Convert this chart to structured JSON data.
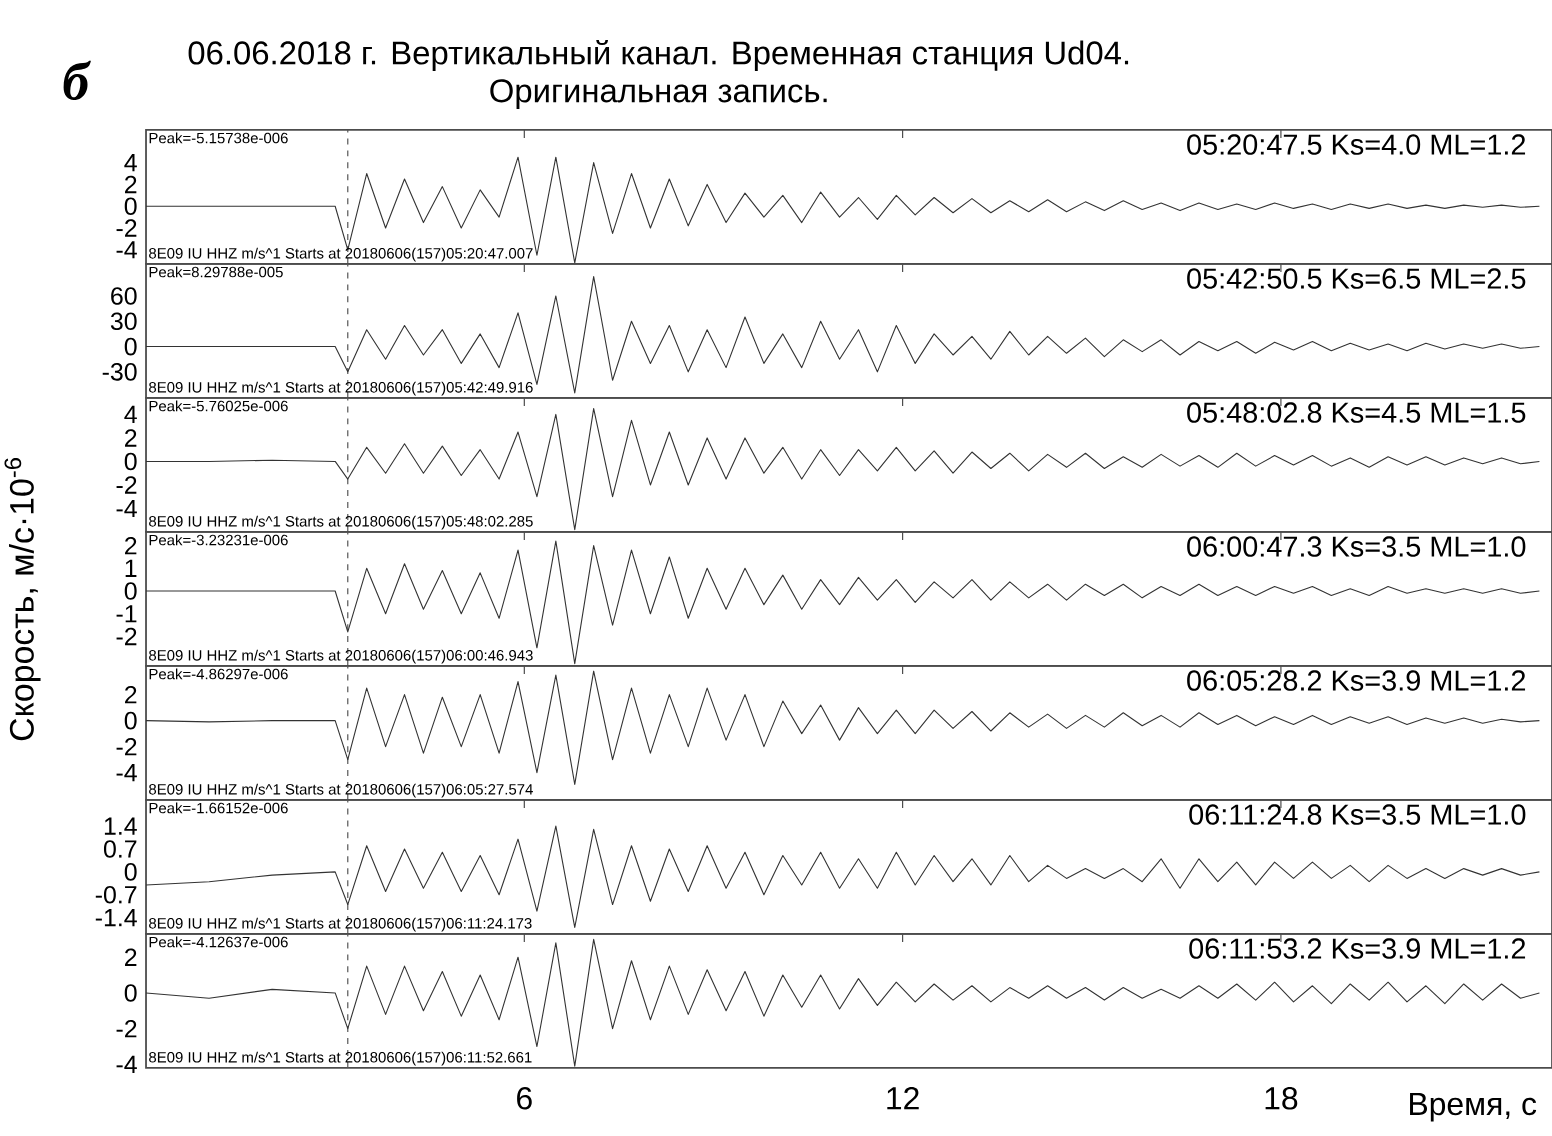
{
  "chart_data": [
    {
      "type": "line",
      "title": "06.06.2018 г. Вертикальный канал. Временная станция Ud04.",
      "subtitle": "Оригинальная запись.",
      "x": [
        0,
        1,
        2,
        3,
        3.2,
        3.5,
        3.8,
        4.1,
        4.4,
        4.7,
        5,
        5.3,
        5.6,
        5.9,
        6.2,
        6.5,
        6.8,
        7.1,
        7.4,
        7.7,
        8,
        8.3,
        8.6,
        8.9,
        9.2,
        9.5,
        9.8,
        10.1,
        10.4,
        10.7,
        11,
        11.3,
        11.6,
        11.9,
        12.2,
        12.5,
        12.8,
        13.1,
        13.4,
        13.7,
        14,
        14.3,
        14.6,
        14.9,
        15.2,
        15.5,
        15.8,
        16.1,
        16.4,
        16.7,
        17,
        17.3,
        17.6,
        17.9,
        18.2,
        18.5,
        18.8,
        19.1,
        19.4,
        19.7,
        20,
        20.3,
        20.6,
        20.9,
        21.2,
        21.5,
        21.8,
        22.1
      ],
      "series": [
        {
          "color": "#333333",
          "values": [
            0,
            0,
            0,
            0,
            -4,
            3,
            -2,
            2.5,
            -1.5,
            1.8,
            -2,
            1.5,
            -1,
            4.5,
            -4.5,
            4.5,
            -5.2,
            4,
            -2.5,
            3,
            -2,
            2.5,
            -1.8,
            2,
            -1.5,
            1.2,
            -1,
            1,
            -1.5,
            1.3,
            -1,
            0.8,
            -1.2,
            1,
            -0.8,
            0.8,
            -0.6,
            0.7,
            -0.6,
            0.5,
            -0.5,
            0.6,
            -0.5,
            0.4,
            -0.4,
            0.5,
            -0.3,
            0.3,
            -0.4,
            0.3,
            -0.3,
            0.2,
            -0.3,
            0.3,
            -0.2,
            0.2,
            -0.3,
            0.2,
            -0.2,
            0.2,
            -0.2,
            0.1,
            -0.2,
            0.1,
            -0.1,
            0.1,
            -0.1,
            0
          ]
        }
      ],
      "xlim": [
        0,
        22.3
      ],
      "xticks": [
        6,
        12,
        18
      ],
      "ylim": [
        -5.3,
        7
      ],
      "yticks": [
        4,
        2,
        0,
        -2,
        -4
      ],
      "tick_labels": "y",
      "ref_lines": [
        {
          "axis": "x",
          "value": 3.2,
          "line_style": "dashed",
          "color": "#555555"
        }
      ],
      "annotations": [
        "Peak=-5.15738e-006",
        "8E09 IU HHZ  m/s^1 Starts at 20180606(157)05:20:47.007",
        "05:20:47.5  Ks=4.0  ML=1.2",
        "б"
      ]
    },
    {
      "type": "line",
      "x": [
        0,
        1,
        2,
        3,
        3.2,
        3.5,
        3.8,
        4.1,
        4.4,
        4.7,
        5,
        5.3,
        5.6,
        5.9,
        6.2,
        6.5,
        6.8,
        7.1,
        7.4,
        7.7,
        8,
        8.3,
        8.6,
        8.9,
        9.2,
        9.5,
        9.8,
        10.1,
        10.4,
        10.7,
        11,
        11.3,
        11.6,
        11.9,
        12.2,
        12.5,
        12.8,
        13.1,
        13.4,
        13.7,
        14,
        14.3,
        14.6,
        14.9,
        15.2,
        15.5,
        15.8,
        16.1,
        16.4,
        16.7,
        17,
        17.3,
        17.6,
        17.9,
        18.2,
        18.5,
        18.8,
        19.1,
        19.4,
        19.7,
        20,
        20.3,
        20.6,
        20.9,
        21.2,
        21.5,
        21.8,
        22.1
      ],
      "series": [
        {
          "color": "#333333",
          "values": [
            0,
            0,
            0,
            0,
            -30,
            20,
            -15,
            25,
            -10,
            20,
            -20,
            15,
            -25,
            40,
            -45,
            60,
            -55,
            83,
            -40,
            30,
            -20,
            25,
            -30,
            20,
            -25,
            35,
            -20,
            15,
            -25,
            30,
            -15,
            20,
            -30,
            25,
            -20,
            15,
            -10,
            12,
            -15,
            18,
            -10,
            12,
            -8,
            10,
            -12,
            8,
            -6,
            8,
            -10,
            6,
            -5,
            6,
            -8,
            5,
            -4,
            6,
            -5,
            4,
            -4,
            3,
            -5,
            4,
            -3,
            3,
            -2,
            3,
            -2,
            0
          ]
        }
      ],
      "xlim": [
        0,
        22.3
      ],
      "xticks": [
        6,
        12,
        18
      ],
      "ylim": [
        -61,
        98
      ],
      "yticks": [
        60,
        30,
        0,
        -30
      ],
      "tick_labels": "y",
      "ref_lines": [
        {
          "axis": "x",
          "value": 3.2,
          "line_style": "dashed",
          "color": "#555555"
        }
      ],
      "annotations": [
        "Peak=8.29788e-005",
        "8E09 IU HHZ  m/s^1 Starts at 20180606(157)05:42:49.916",
        "05:42:50.5  Ks=6.5  ML=2.5"
      ]
    },
    {
      "type": "line",
      "x": [
        0,
        1,
        2,
        3,
        3.2,
        3.5,
        3.8,
        4.1,
        4.4,
        4.7,
        5,
        5.3,
        5.6,
        5.9,
        6.2,
        6.5,
        6.8,
        7.1,
        7.4,
        7.7,
        8,
        8.3,
        8.6,
        8.9,
        9.2,
        9.5,
        9.8,
        10.1,
        10.4,
        10.7,
        11,
        11.3,
        11.6,
        11.9,
        12.2,
        12.5,
        12.8,
        13.1,
        13.4,
        13.7,
        14,
        14.3,
        14.6,
        14.9,
        15.2,
        15.5,
        15.8,
        16.1,
        16.4,
        16.7,
        17,
        17.3,
        17.6,
        17.9,
        18.2,
        18.5,
        18.8,
        19.1,
        19.4,
        19.7,
        20,
        20.3,
        20.6,
        20.9,
        21.2,
        21.5,
        21.8,
        22.1
      ],
      "series": [
        {
          "color": "#333333",
          "values": [
            0,
            0,
            0.1,
            0,
            -1.5,
            1.2,
            -1,
            1.5,
            -1,
            1.3,
            -1.2,
            1,
            -1.5,
            2.5,
            -3,
            4,
            -5.8,
            4.5,
            -3,
            3.5,
            -2,
            2.5,
            -2,
            2,
            -1.5,
            2,
            -1,
            1.2,
            -1.5,
            1,
            -1.2,
            1,
            -0.8,
            1.2,
            -0.8,
            0.9,
            -1,
            0.8,
            -0.6,
            0.7,
            -0.8,
            0.6,
            -0.5,
            0.7,
            -0.6,
            0.4,
            -0.5,
            0.6,
            -0.4,
            0.5,
            -0.5,
            0.7,
            -0.4,
            0.5,
            -0.3,
            0.5,
            -0.4,
            0.3,
            -0.5,
            0.4,
            -0.3,
            0.4,
            -0.3,
            0.3,
            -0.2,
            0.3,
            -0.2,
            0
          ]
        }
      ],
      "xlim": [
        0,
        22.3
      ],
      "xticks": [
        6,
        12,
        18
      ],
      "ylim": [
        -6,
        5.4
      ],
      "yticks": [
        4,
        2,
        0,
        -2,
        -4
      ],
      "tick_labels": "y",
      "ref_lines": [
        {
          "axis": "x",
          "value": 3.2,
          "line_style": "dashed",
          "color": "#555555"
        }
      ],
      "annotations": [
        "Peak=-5.76025e-006",
        "8E09 IU HHZ  m/s^1 Starts at 20180606(157)05:48:02.285",
        "05:48:02.8  Ks=4.5  ML=1.5"
      ]
    },
    {
      "type": "line",
      "ylabel": "Скорость,  м/с·10$^{-6}$",
      "x": [
        0,
        1,
        2,
        3,
        3.2,
        3.5,
        3.8,
        4.1,
        4.4,
        4.7,
        5,
        5.3,
        5.6,
        5.9,
        6.2,
        6.5,
        6.8,
        7.1,
        7.4,
        7.7,
        8,
        8.3,
        8.6,
        8.9,
        9.2,
        9.5,
        9.8,
        10.1,
        10.4,
        10.7,
        11,
        11.3,
        11.6,
        11.9,
        12.2,
        12.5,
        12.8,
        13.1,
        13.4,
        13.7,
        14,
        14.3,
        14.6,
        14.9,
        15.2,
        15.5,
        15.8,
        16.1,
        16.4,
        16.7,
        17,
        17.3,
        17.6,
        17.9,
        18.2,
        18.5,
        18.8,
        19.1,
        19.4,
        19.7,
        20,
        20.3,
        20.6,
        20.9,
        21.2,
        21.5,
        21.8,
        22.1
      ],
      "series": [
        {
          "color": "#333333",
          "values": [
            0,
            0,
            0,
            0,
            -1.8,
            1,
            -1,
            1.2,
            -0.8,
            0.9,
            -1,
            0.8,
            -1.2,
            1.8,
            -2.5,
            2.2,
            -3.2,
            2,
            -1.5,
            1.8,
            -1,
            1.5,
            -1.2,
            1,
            -0.8,
            1,
            -0.6,
            0.7,
            -0.8,
            0.5,
            -0.6,
            0.6,
            -0.4,
            0.5,
            -0.5,
            0.4,
            -0.3,
            0.5,
            -0.4,
            0.4,
            -0.3,
            0.3,
            -0.4,
            0.3,
            -0.2,
            0.3,
            -0.3,
            0.2,
            -0.2,
            0.3,
            -0.2,
            0.2,
            -0.2,
            0.2,
            -0.1,
            0.2,
            -0.2,
            0.1,
            -0.2,
            0.2,
            -0.1,
            0.1,
            -0.1,
            0.1,
            -0.1,
            0.1,
            -0.1,
            0
          ]
        }
      ],
      "xlim": [
        0,
        22.3
      ],
      "xticks": [
        6,
        12,
        18
      ],
      "ylim": [
        -3.3,
        2.6
      ],
      "yticks": [
        2,
        1,
        0,
        -1,
        -2
      ],
      "tick_labels": "y",
      "ref_lines": [
        {
          "axis": "x",
          "value": 3.2,
          "line_style": "dashed",
          "color": "#555555"
        }
      ],
      "annotations": [
        "Peak=-3.23231e-006",
        "8E09 IU HHZ  m/s^1 Starts at 20180606(157)06:00:46.943",
        "06:00:47.3  Ks=3.5  ML=1.0"
      ]
    },
    {
      "type": "line",
      "x": [
        0,
        1,
        2,
        3,
        3.2,
        3.5,
        3.8,
        4.1,
        4.4,
        4.7,
        5,
        5.3,
        5.6,
        5.9,
        6.2,
        6.5,
        6.8,
        7.1,
        7.4,
        7.7,
        8,
        8.3,
        8.6,
        8.9,
        9.2,
        9.5,
        9.8,
        10.1,
        10.4,
        10.7,
        11,
        11.3,
        11.6,
        11.9,
        12.2,
        12.5,
        12.8,
        13.1,
        13.4,
        13.7,
        14,
        14.3,
        14.6,
        14.9,
        15.2,
        15.5,
        15.8,
        16.1,
        16.4,
        16.7,
        17,
        17.3,
        17.6,
        17.9,
        18.2,
        18.5,
        18.8,
        19.1,
        19.4,
        19.7,
        20,
        20.3,
        20.6,
        20.9,
        21.2,
        21.5,
        21.8,
        22.1
      ],
      "series": [
        {
          "color": "#333333",
          "values": [
            0,
            -0.1,
            0,
            0,
            -3,
            2.5,
            -2,
            2,
            -2.5,
            1.8,
            -2,
            2,
            -2.5,
            3,
            -4,
            3.5,
            -4.9,
            3.8,
            -3,
            2.5,
            -2.5,
            2,
            -2,
            2.5,
            -1.5,
            2,
            -2,
            1.5,
            -1,
            1.2,
            -1.5,
            1,
            -1,
            0.8,
            -1,
            0.8,
            -0.6,
            0.7,
            -0.8,
            0.6,
            -0.5,
            0.5,
            -0.6,
            0.4,
            -0.5,
            0.6,
            -0.4,
            0.4,
            -0.5,
            0.6,
            -0.3,
            0.4,
            -0.4,
            0.3,
            -0.3,
            0.4,
            -0.3,
            0.3,
            -0.2,
            0.3,
            -0.3,
            0.2,
            -0.2,
            0.2,
            -0.2,
            0.1,
            -0.1,
            0
          ]
        }
      ],
      "xlim": [
        0,
        22.3
      ],
      "xticks": [
        6,
        12,
        18
      ],
      "ylim": [
        -6.1,
        4.2
      ],
      "yticks": [
        2,
        0,
        -2,
        -4
      ],
      "tick_labels": "y",
      "ref_lines": [
        {
          "axis": "x",
          "value": 3.2,
          "line_style": "dashed",
          "color": "#555555"
        }
      ],
      "annotations": [
        "Peak=-4.86297e-006",
        "8E09 IU HHZ  m/s^1 Starts at 20180606(157)06:05:27.574",
        "06:05:28.2  Ks=3.9  ML=1.2"
      ]
    },
    {
      "type": "line",
      "x": [
        0,
        1,
        2,
        3,
        3.2,
        3.5,
        3.8,
        4.1,
        4.4,
        4.7,
        5,
        5.3,
        5.6,
        5.9,
        6.2,
        6.5,
        6.8,
        7.1,
        7.4,
        7.7,
        8,
        8.3,
        8.6,
        8.9,
        9.2,
        9.5,
        9.8,
        10.1,
        10.4,
        10.7,
        11,
        11.3,
        11.6,
        11.9,
        12.2,
        12.5,
        12.8,
        13.1,
        13.4,
        13.7,
        14,
        14.3,
        14.6,
        14.9,
        15.2,
        15.5,
        15.8,
        16.1,
        16.4,
        16.7,
        17,
        17.3,
        17.6,
        17.9,
        18.2,
        18.5,
        18.8,
        19.1,
        19.4,
        19.7,
        20,
        20.3,
        20.6,
        20.9,
        21.2,
        21.5,
        21.8,
        22.1
      ],
      "series": [
        {
          "color": "#333333",
          "values": [
            -0.4,
            -0.3,
            -0.1,
            0,
            -1,
            0.8,
            -0.6,
            0.7,
            -0.5,
            0.6,
            -0.6,
            0.5,
            -0.7,
            1,
            -1.2,
            1.4,
            -1.7,
            1.3,
            -1,
            0.8,
            -0.9,
            0.7,
            -0.6,
            0.8,
            -0.5,
            0.6,
            -0.7,
            0.5,
            -0.4,
            0.6,
            -0.5,
            0.4,
            -0.5,
            0.6,
            -0.4,
            0.5,
            -0.3,
            0.4,
            -0.4,
            0.5,
            -0.3,
            0.2,
            -0.2,
            0.1,
            -0.2,
            0.1,
            -0.3,
            0.4,
            -0.5,
            0.4,
            -0.3,
            0.3,
            -0.4,
            0.3,
            -0.2,
            0.3,
            -0.2,
            0.2,
            -0.3,
            0.2,
            -0.2,
            0.1,
            -0.2,
            0.1,
            -0.1,
            0.1,
            -0.1,
            0
          ]
        }
      ],
      "xlim": [
        0,
        22.3
      ],
      "xticks": [
        6,
        12,
        18
      ],
      "ylim": [
        -1.9,
        2.2
      ],
      "yticks": [
        1.4,
        0.7,
        0,
        -0.7,
        -1.4
      ],
      "tick_labels": "y",
      "ref_lines": [
        {
          "axis": "x",
          "value": 3.2,
          "line_style": "dashed",
          "color": "#555555"
        }
      ],
      "annotations": [
        "Peak=-1.66152e-006",
        "8E09 IU HHZ  m/s^1 Starts at 20180606(157)06:11:24.173",
        "06:11:24.8  Ks=3.5  ML=1.0"
      ]
    },
    {
      "type": "line",
      "xlabel": "Время, с",
      "x": [
        0,
        1,
        2,
        3,
        3.2,
        3.5,
        3.8,
        4.1,
        4.4,
        4.7,
        5,
        5.3,
        5.6,
        5.9,
        6.2,
        6.5,
        6.8,
        7.1,
        7.4,
        7.7,
        8,
        8.3,
        8.6,
        8.9,
        9.2,
        9.5,
        9.8,
        10.1,
        10.4,
        10.7,
        11,
        11.3,
        11.6,
        11.9,
        12.2,
        12.5,
        12.8,
        13.1,
        13.4,
        13.7,
        14,
        14.3,
        14.6,
        14.9,
        15.2,
        15.5,
        15.8,
        16.1,
        16.4,
        16.7,
        17,
        17.3,
        17.6,
        17.9,
        18.2,
        18.5,
        18.8,
        19.1,
        19.4,
        19.7,
        20,
        20.3,
        20.6,
        20.9,
        21.2,
        21.5,
        21.8,
        22.1
      ],
      "series": [
        {
          "color": "#333333",
          "values": [
            0,
            -0.3,
            0.2,
            0,
            -2,
            1.5,
            -1.2,
            1.5,
            -1,
            1.2,
            -1.3,
            1,
            -1.5,
            2,
            -3,
            2.8,
            -4.1,
            3,
            -2,
            1.8,
            -1.5,
            1.5,
            -1.2,
            1.3,
            -1,
            1.2,
            -1.3,
            1,
            -0.8,
            1,
            -0.9,
            0.8,
            -0.7,
            0.6,
            -0.5,
            0.5,
            -0.4,
            0.4,
            -0.5,
            0.3,
            -0.3,
            0.4,
            -0.3,
            0.3,
            -0.4,
            0.3,
            -0.3,
            0.2,
            -0.3,
            0.4,
            -0.3,
            0.5,
            -0.4,
            0.6,
            -0.5,
            0.4,
            -0.6,
            0.5,
            -0.4,
            0.6,
            -0.5,
            0.4,
            -0.6,
            0.5,
            -0.4,
            0.5,
            -0.3,
            0
          ]
        }
      ],
      "xlim": [
        0,
        22.3
      ],
      "xticks": [
        6,
        12,
        18
      ],
      "ylim": [
        -4.2,
        3.3
      ],
      "yticks": [
        2,
        0,
        -2,
        -4
      ],
      "ref_lines": [
        {
          "axis": "x",
          "value": 3.2,
          "line_style": "dashed",
          "color": "#555555"
        }
      ],
      "annotations": [
        "Peak=-4.12637e-006",
        "8E09 IU HHZ  m/s^1 Starts at 20180606(157)06:11:52.661",
        "06:11:53.2  Ks=3.9  ML=1.2"
      ]
    }
  ]
}
